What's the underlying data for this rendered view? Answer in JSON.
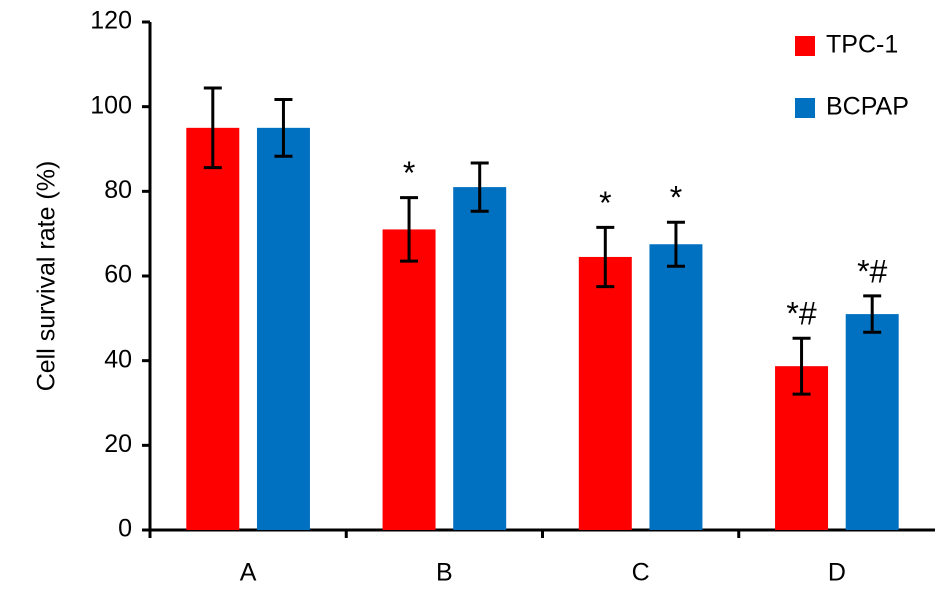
{
  "chart_data": {
    "type": "bar",
    "y_label": "Cell survival rate (%)",
    "categories": [
      "A",
      "B",
      "C",
      "D"
    ],
    "series": [
      {
        "name": "TPC-1",
        "color": "#ff0000",
        "values": [
          95,
          71,
          64.5,
          38.7
        ],
        "errors": [
          9.4,
          7.5,
          7,
          6.6
        ],
        "annotations": [
          null,
          "*",
          "*",
          "*#"
        ]
      },
      {
        "name": "BCPAP",
        "color": "#0070c0",
        "values": [
          95,
          81,
          67.5,
          51
        ],
        "errors": [
          6.7,
          5.7,
          5.2,
          4.3
        ],
        "annotations": [
          null,
          null,
          "*",
          "*#"
        ]
      }
    ],
    "ylim": [
      0,
      120
    ],
    "yticks": [
      0,
      20,
      40,
      60,
      80,
      100,
      120
    ],
    "legend": "top-right"
  }
}
